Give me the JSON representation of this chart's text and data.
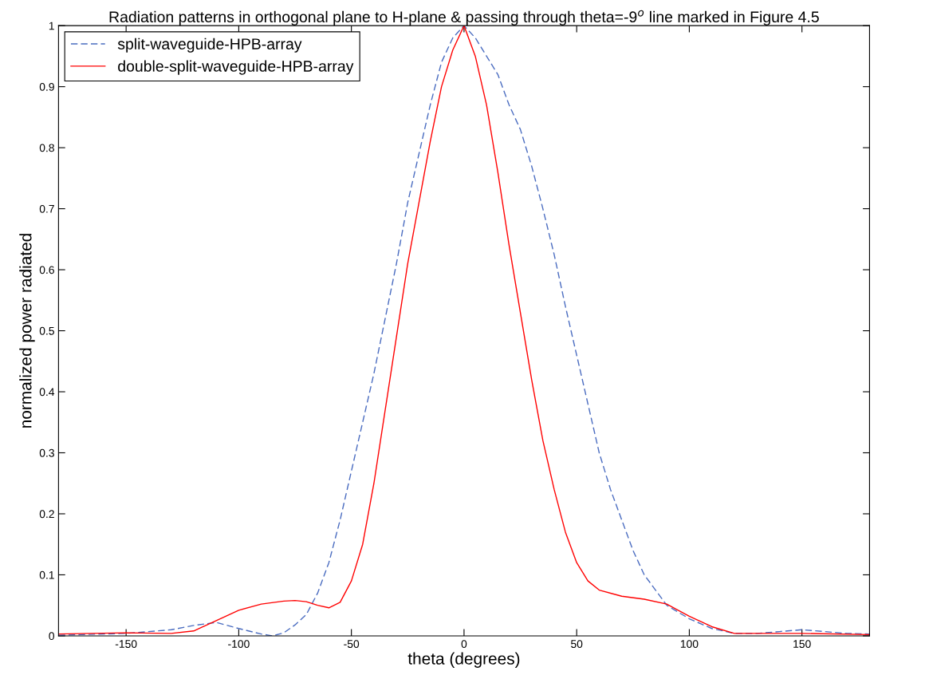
{
  "chart_data": {
    "type": "line",
    "title": "Radiation patterns in orthogonal plane to H-plane & passing through theta=-9$^{o}$ line marked in Figure 4.5",
    "xlabel": "theta (degrees)",
    "ylabel": "normalized power radiated",
    "xlim": [
      -180,
      180
    ],
    "ylim": [
      0,
      1
    ],
    "xticks": [
      -150,
      -100,
      -50,
      0,
      50,
      100,
      150
    ],
    "yticks": [
      0,
      0.1,
      0.2,
      0.3,
      0.4,
      0.5,
      0.6,
      0.7,
      0.8,
      0.9,
      1
    ],
    "grid": false,
    "legend": "top left",
    "series": [
      {
        "name": "split-waveguide-HPB-array",
        "color": "#4a6cc0",
        "line_style": "dashed",
        "x": [
          -180,
          -170,
          -150,
          -130,
          -120,
          -110,
          -100,
          -90,
          -85,
          -80,
          -75,
          -70,
          -65,
          -60,
          -55,
          -50,
          -45,
          -40,
          -35,
          -30,
          -25,
          -20,
          -15,
          -10,
          -5,
          0,
          5,
          10,
          15,
          20,
          25,
          30,
          35,
          40,
          45,
          50,
          55,
          60,
          65,
          70,
          75,
          80,
          90,
          100,
          110,
          120,
          130,
          140,
          150,
          160,
          170,
          180
        ],
        "values": [
          0.001,
          0.002,
          0.004,
          0.01,
          0.017,
          0.022,
          0.012,
          0.003,
          0.0,
          0.005,
          0.018,
          0.035,
          0.07,
          0.12,
          0.19,
          0.27,
          0.35,
          0.43,
          0.52,
          0.61,
          0.71,
          0.79,
          0.87,
          0.94,
          0.98,
          1,
          0.98,
          0.95,
          0.92,
          0.87,
          0.83,
          0.77,
          0.7,
          0.625,
          0.54,
          0.46,
          0.38,
          0.3,
          0.24,
          0.19,
          0.14,
          0.1,
          0.05,
          0.028,
          0.012,
          0.004,
          0.004,
          0.007,
          0.01,
          0.007,
          0.004,
          0.003
        ]
      },
      {
        "name": "double-split-waveguide-HPB-array",
        "color": "#ff0000",
        "line_style": "solid",
        "x": [
          -180,
          -150,
          -130,
          -120,
          -110,
          -100,
          -90,
          -80,
          -75,
          -70,
          -65,
          -60,
          -55,
          -50,
          -45,
          -40,
          -35,
          -30,
          -25,
          -20,
          -15,
          -10,
          -5,
          0,
          5,
          10,
          15,
          20,
          25,
          30,
          35,
          40,
          45,
          50,
          55,
          60,
          70,
          80,
          90,
          100,
          110,
          120,
          150,
          180
        ],
        "values": [
          0.003,
          0.005,
          0.004,
          0.008,
          0.025,
          0.042,
          0.052,
          0.057,
          0.058,
          0.056,
          0.05,
          0.046,
          0.055,
          0.09,
          0.15,
          0.25,
          0.37,
          0.49,
          0.61,
          0.71,
          0.81,
          0.9,
          0.96,
          1,
          0.95,
          0.87,
          0.76,
          0.64,
          0.53,
          0.42,
          0.32,
          0.24,
          0.17,
          0.12,
          0.09,
          0.075,
          0.065,
          0.06,
          0.052,
          0.032,
          0.015,
          0.004,
          0.004,
          0.002
        ]
      }
    ]
  }
}
